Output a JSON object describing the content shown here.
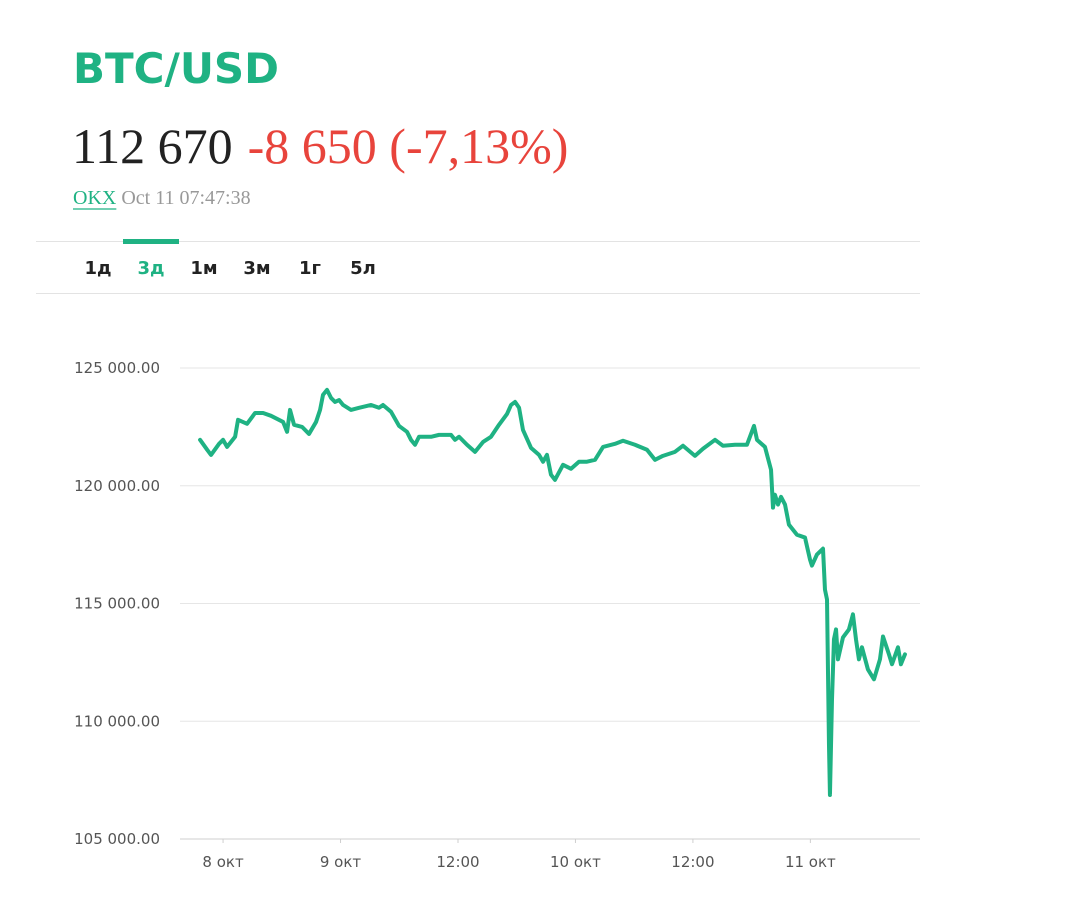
{
  "header": {
    "title": "BTC/USD",
    "price": "112 670",
    "change": "-8 650 (-7,13%)",
    "source": "OKX",
    "timestamp": "Oct 11 07:47:38"
  },
  "tabs": {
    "items": [
      "1д",
      "3д",
      "1м",
      "3м",
      "1г",
      "5л"
    ],
    "active": 1
  },
  "chart_data": {
    "type": "line",
    "color": "#1fb283",
    "grid": true,
    "x": [
      -2.35,
      -1.63,
      -1.23,
      -0.41,
      0,
      0.41,
      1.23,
      1.53,
      2.45,
      3.27,
      4.09,
      4.9,
      6.13,
      6.54,
      6.84,
      7.25,
      8.07,
      8.78,
      9.5,
      9.91,
      10.21,
      10.62,
      11.03,
      11.44,
      11.85,
      12.26,
      13.07,
      13.89,
      15.12,
      15.93,
      16.34,
      17.16,
      17.98,
      18.79,
      19.2,
      19.61,
      20.02,
      21.25,
      22.06,
      23.29,
      23.7,
      24.11,
      24.92,
      25.74,
      26.56,
      27.37,
      28.19,
      29.01,
      29.42,
      29.83,
      30.24,
      30.64,
      31.46,
      32.28,
      32.69,
      33.09,
      33.5,
      33.91,
      34.73,
      35.55,
      36.36,
      37.18,
      38,
      38.82,
      40.04,
      40.86,
      42.08,
      43.31,
      44.13,
      44.94,
      46.17,
      46.99,
      48.21,
      49.03,
      50.26,
      51.07,
      52.3,
      53.52,
      54.24,
      54.55,
      55.36,
      55.98,
      56.18,
      56.38,
      56.69,
      57,
      57.41,
      57.81,
      58.63,
      59.45,
      59.96,
      60.16,
      60.67,
      61.29,
      61.49,
      61.7,
      61.9,
      62,
      62.21,
      62.41,
      62.62,
      62.82,
      63.33,
      63.94,
      64.35,
      64.66,
      64.96,
      65.27,
      65.88,
      66.5,
      67.11,
      67.42,
      68.03,
      68.34,
      68.95,
      69.25,
      69.66
    ],
    "values": [
      121950,
      121530,
      121310,
      121780,
      121950,
      121650,
      122080,
      122800,
      122630,
      123090,
      123090,
      122970,
      122710,
      122290,
      123220,
      122590,
      122500,
      122200,
      122710,
      123220,
      123860,
      124070,
      123730,
      123560,
      123640,
      123430,
      123220,
      123310,
      123430,
      123310,
      123430,
      123140,
      122540,
      122290,
      121950,
      121740,
      122080,
      122080,
      122160,
      122160,
      121950,
      122080,
      121740,
      121440,
      121860,
      122080,
      122590,
      123050,
      123430,
      123560,
      123310,
      122370,
      121610,
      121310,
      121020,
      121310,
      120470,
      120250,
      120890,
      120720,
      121020,
      121020,
      121100,
      121650,
      121780,
      121910,
      121740,
      121530,
      121100,
      121270,
      121440,
      121700,
      121270,
      121570,
      121950,
      121700,
      121740,
      121740,
      122540,
      121950,
      121650,
      120680,
      119070,
      119620,
      119200,
      119530,
      119200,
      118350,
      117920,
      117800,
      116870,
      116610,
      117080,
      117330,
      115590,
      115170,
      109030,
      106870,
      110930,
      113480,
      113900,
      112630,
      113560,
      113900,
      114540,
      113480,
      112630,
      113140,
      112200,
      111780,
      112630,
      113600,
      112840,
      112420,
      113140,
      112420,
      112840
    ],
    "xlim": [
      -4.4,
      71.2
    ],
    "ylim": [
      105000,
      125000
    ],
    "xticks": [
      {
        "value": 0,
        "label": "8 окт"
      },
      {
        "value": 12,
        "label": "9 окт"
      },
      {
        "value": 24,
        "label": "12:00"
      },
      {
        "value": 36,
        "label": "10 окт"
      },
      {
        "value": 48,
        "label": "12:00"
      },
      {
        "value": 60,
        "label": "11 окт"
      }
    ],
    "yticks": [
      {
        "value": 105000,
        "label": "105 000.00"
      },
      {
        "value": 110000,
        "label": "110 000.00"
      },
      {
        "value": 115000,
        "label": "115 000.00"
      },
      {
        "value": 120000,
        "label": "120 000.00"
      },
      {
        "value": 125000,
        "label": "125 000.00"
      }
    ]
  }
}
